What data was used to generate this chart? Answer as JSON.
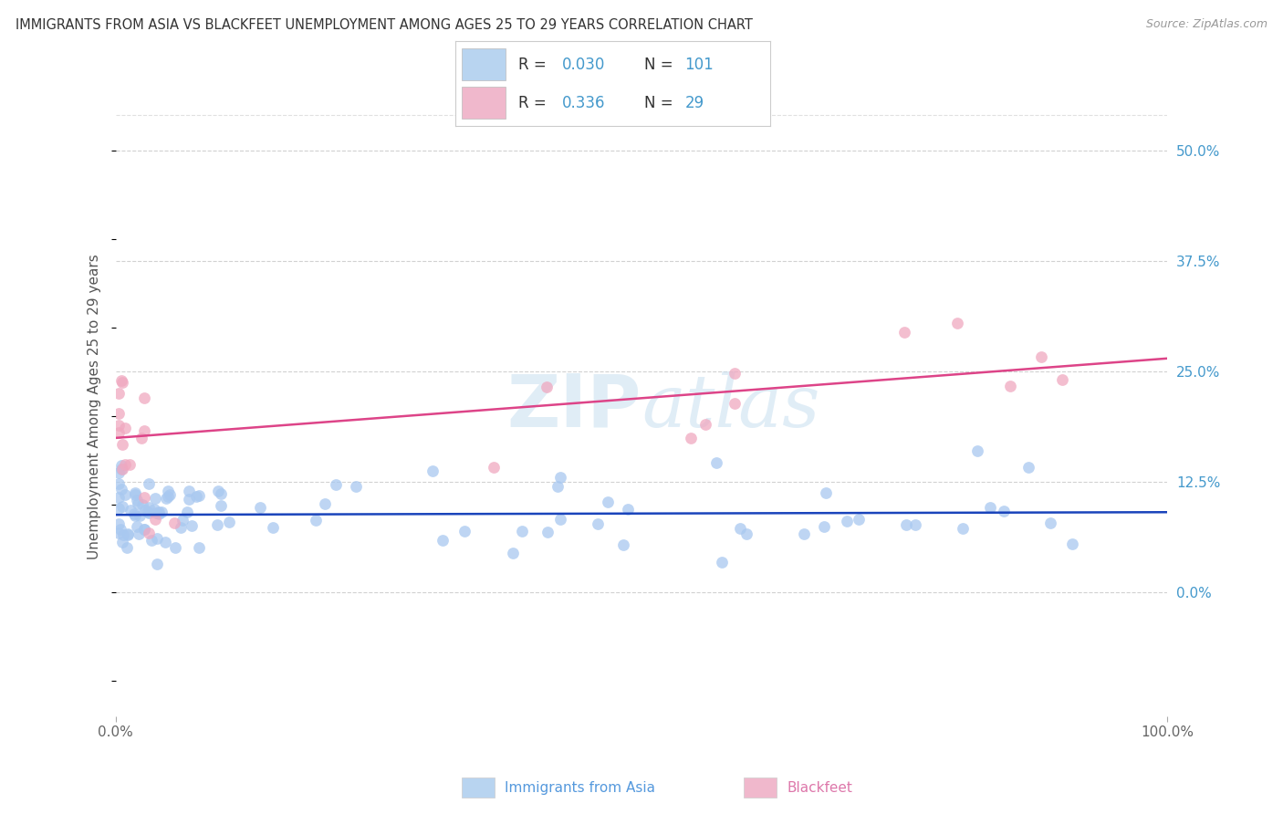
{
  "title": "IMMIGRANTS FROM ASIA VS BLACKFEET UNEMPLOYMENT AMONG AGES 25 TO 29 YEARS CORRELATION CHART",
  "source": "Source: ZipAtlas.com",
  "xlabel_blue": "Immigrants from Asia",
  "xlabel_pink": "Blackfeet",
  "ylabel": "Unemployment Among Ages 25 to 29 years",
  "xmin": 0.0,
  "xmax": 100.0,
  "ymin": -14.0,
  "ymax": 56.0,
  "ytick_vals": [
    0.0,
    12.5,
    25.0,
    37.5,
    50.0
  ],
  "ytick_labels": [
    "0.0%",
    "12.5%",
    "25.0%",
    "37.5%",
    "50.0%"
  ],
  "blue_R": 0.03,
  "blue_N": 101,
  "pink_R": 0.336,
  "pink_N": 29,
  "blue_scatter_color": "#a8c8f0",
  "pink_scatter_color": "#f0a8c0",
  "blue_line_color": "#1a44bb",
  "pink_line_color": "#dd4488",
  "legend_box_blue": "#b8d4f0",
  "legend_box_pink": "#f0b8cc",
  "grid_color": "#cccccc",
  "background_color": "#ffffff",
  "right_tick_color": "#4499cc",
  "watermark_text": "ZIPatlas",
  "watermark_color": "#cce0f0",
  "title_color": "#333333",
  "source_color": "#999999",
  "ylabel_color": "#555555",
  "xlabel_blue_color": "#5599dd",
  "xlabel_pink_color": "#dd77aa",
  "blue_trend_intercept": 8.8,
  "blue_trend_slope": 0.003,
  "pink_trend_intercept": 17.5,
  "pink_trend_slope": 0.09
}
